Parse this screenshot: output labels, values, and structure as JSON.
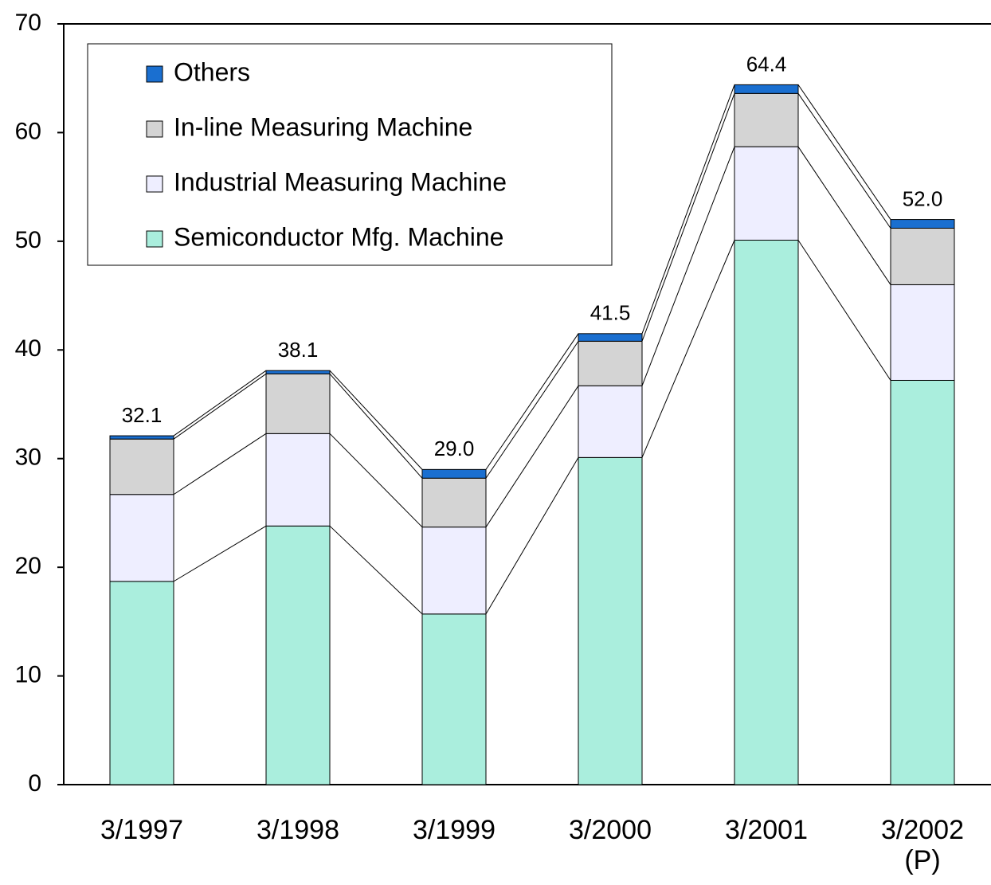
{
  "chart_data": {
    "type": "stacked-bar",
    "categories": [
      "3/1997",
      "3/1998",
      "3/1999",
      "3/2000",
      "3/2001",
      "3/2002\n(P)"
    ],
    "series": [
      {
        "name": "Semiconductor Mfg. Machine",
        "color": "#aaeedd",
        "values": [
          18.7,
          23.8,
          15.7,
          30.1,
          50.1,
          37.2
        ]
      },
      {
        "name": "Industrial Measuring Machine",
        "color": "#eeeeff",
        "values": [
          8.0,
          8.5,
          8.0,
          6.6,
          8.6,
          8.8
        ]
      },
      {
        "name": "In-line Measuring Machine",
        "color": "#d4d4d4",
        "values": [
          5.1,
          5.5,
          4.5,
          4.1,
          4.9,
          5.2
        ]
      },
      {
        "name": "Others",
        "color": "#1a6fd0",
        "values": [
          0.3,
          0.3,
          0.8,
          0.7,
          0.8,
          0.8
        ]
      }
    ],
    "totals": {
      "values": [
        32.1,
        38.1,
        29.0,
        41.5,
        64.4,
        52.0
      ],
      "value_labels": [
        "32.1",
        "38.1",
        "29.0",
        "41.5",
        "64.4",
        "52.0"
      ]
    },
    "ylim": [
      0,
      70
    ],
    "yticks": [
      0,
      10,
      20,
      30,
      40,
      50,
      60,
      70
    ],
    "connector_lines": true
  }
}
